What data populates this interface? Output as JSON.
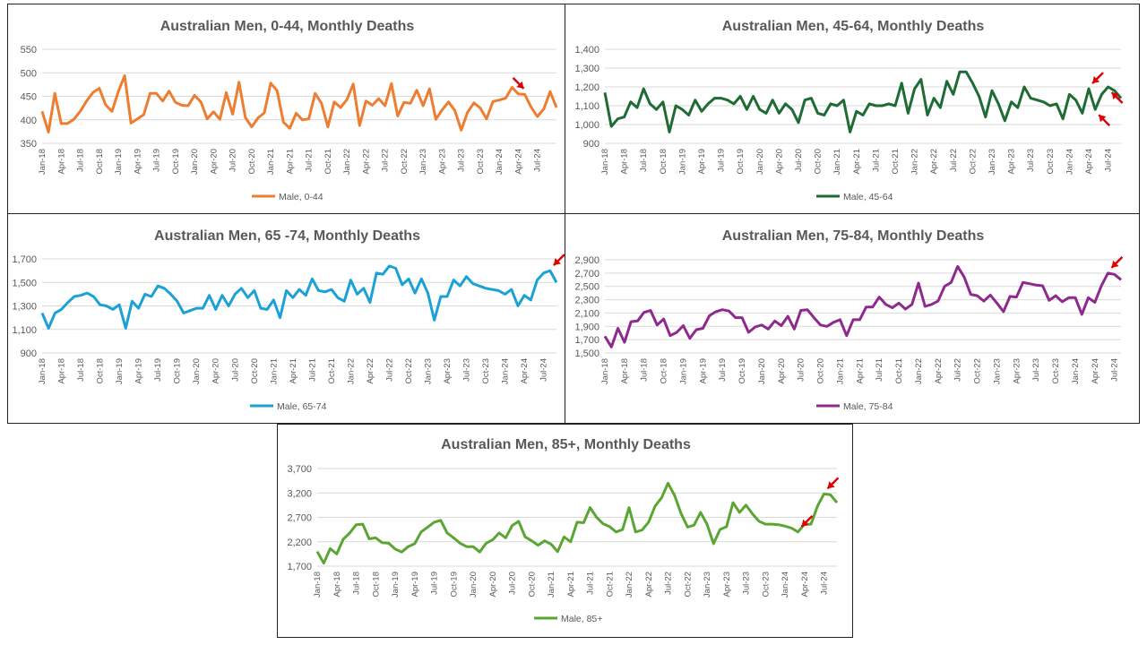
{
  "chart_data": [
    {
      "type": "line",
      "title": "Australian Men, 0-44, Monthly Deaths",
      "color": "#ed7d31",
      "ylim": [
        350,
        550
      ],
      "yticks": [
        350,
        400,
        450,
        500,
        550
      ],
      "ytick_labels": [
        "350",
        "400",
        "450",
        "500",
        "550"
      ],
      "xtick_labels": [
        "Jan-18",
        "Apr-18",
        "Jul-18",
        "Oct-18",
        "Jan-19",
        "Apr-19",
        "Jul-19",
        "Oct-19",
        "Jan-20",
        "Apr-20",
        "Jul-20",
        "Oct-20",
        "Jan-21",
        "Apr-21",
        "Jul-21",
        "Oct-21",
        "Jan-22",
        "Apr-22",
        "Jul-22",
        "Oct-22",
        "Jan-23",
        "Apr-23",
        "Jul-23",
        "Oct-23",
        "Jan-24",
        "Apr-24",
        "Jul-24"
      ],
      "legend_position": "bottom",
      "grid": true,
      "series": [
        {
          "name": "Male, 0-44",
          "values": [
            418,
            374,
            456,
            392,
            392,
            401,
            418,
            440,
            458,
            467,
            432,
            418,
            460,
            494,
            393,
            402,
            411,
            456,
            456,
            440,
            461,
            437,
            431,
            430,
            452,
            438,
            402,
            417,
            401,
            458,
            412,
            480,
            405,
            385,
            404,
            415,
            478,
            462,
            395,
            382,
            414,
            400,
            402,
            456,
            435,
            385,
            438,
            426,
            443,
            476,
            388,
            440,
            431,
            445,
            430,
            477,
            408,
            437,
            435,
            463,
            430,
            466,
            401,
            421,
            438,
            420,
            378,
            416,
            436,
            425,
            402,
            439,
            442,
            446,
            469,
            455,
            454,
            427,
            407,
            423,
            460,
            426
          ],
          "arrows": [
            {
              "index": 75,
              "dir": "down"
            }
          ]
        }
      ]
    },
    {
      "type": "line",
      "title": "Australian Men, 45-64, Monthly Deaths",
      "color": "#1e6b34",
      "ylim": [
        900,
        1400
      ],
      "yticks": [
        900,
        1000,
        1100,
        1200,
        1300,
        1400
      ],
      "ytick_labels": [
        "900",
        "1,000",
        "1,100",
        "1,200",
        "1,300",
        "1,400"
      ],
      "xtick_labels": [
        "Jan-18",
        "Apr-18",
        "Jul-18",
        "Oct-18",
        "Jan-19",
        "Apr-19",
        "Jul-19",
        "Oct-19",
        "Jan-20",
        "Apr-20",
        "Jul-20",
        "Oct-20",
        "Jan-21",
        "Apr-21",
        "Jul-21",
        "Oct-21",
        "Jan-22",
        "Apr-22",
        "Jul-22",
        "Oct-22",
        "Jan-23",
        "Apr-23",
        "Jul-23",
        "Oct-23",
        "Jan-24",
        "Apr-24",
        "Jul-24"
      ],
      "legend_position": "bottom",
      "grid": true,
      "series": [
        {
          "name": "Male, 45-64",
          "values": [
            1170,
            990,
            1030,
            1040,
            1120,
            1090,
            1190,
            1110,
            1080,
            1120,
            960,
            1100,
            1080,
            1050,
            1130,
            1070,
            1110,
            1140,
            1140,
            1130,
            1110,
            1150,
            1080,
            1150,
            1080,
            1060,
            1130,
            1060,
            1110,
            1080,
            1010,
            1130,
            1140,
            1060,
            1050,
            1110,
            1100,
            1130,
            960,
            1070,
            1050,
            1110,
            1100,
            1100,
            1110,
            1100,
            1220,
            1060,
            1190,
            1240,
            1050,
            1140,
            1090,
            1230,
            1160,
            1280,
            1280,
            1220,
            1150,
            1040,
            1180,
            1110,
            1020,
            1120,
            1090,
            1200,
            1140,
            1130,
            1120,
            1100,
            1110,
            1030,
            1160,
            1130,
            1060,
            1190,
            1080,
            1160,
            1200,
            1180,
            1140
          ],
          "arrows": [
            {
              "index": 75,
              "dir": "down-left"
            },
            {
              "index": 76,
              "dir": "up-left"
            },
            {
              "index": 78,
              "dir": "up-left"
            }
          ]
        }
      ]
    },
    {
      "type": "line",
      "title": "Australian Men, 65 -74, Monthly Deaths",
      "color": "#1ba1d6",
      "ylim": [
        900,
        1700
      ],
      "yticks": [
        900,
        1100,
        1300,
        1500,
        1700
      ],
      "ytick_labels": [
        "900",
        "1,100",
        "1,300",
        "1,500",
        "1,700"
      ],
      "xtick_labels": [
        "Jan-18",
        "Apr-18",
        "Jul-18",
        "Oct-18",
        "Jan-19",
        "Apr-19",
        "Jul-19",
        "Oct-19",
        "Jan-20",
        "Apr-20",
        "Jul-20",
        "Oct-20",
        "Jan-21",
        "Apr-21",
        "Jul-21",
        "Oct-21",
        "Jan-22",
        "Apr-22",
        "Jul-22",
        "Oct-22",
        "Jan-23",
        "Apr-23",
        "Jul-23",
        "Oct-23",
        "Jan-24",
        "Apr-24",
        "Jul-24"
      ],
      "legend_position": "bottom",
      "grid": true,
      "series": [
        {
          "name": "Male, 65-74",
          "values": [
            1240,
            1110,
            1240,
            1270,
            1330,
            1380,
            1390,
            1410,
            1380,
            1310,
            1300,
            1270,
            1310,
            1110,
            1340,
            1280,
            1400,
            1380,
            1470,
            1450,
            1400,
            1340,
            1240,
            1260,
            1280,
            1280,
            1390,
            1270,
            1390,
            1300,
            1400,
            1450,
            1370,
            1430,
            1280,
            1270,
            1350,
            1200,
            1430,
            1370,
            1440,
            1390,
            1530,
            1430,
            1420,
            1440,
            1370,
            1340,
            1520,
            1400,
            1450,
            1330,
            1580,
            1570,
            1640,
            1620,
            1480,
            1530,
            1410,
            1530,
            1410,
            1180,
            1380,
            1380,
            1520,
            1470,
            1550,
            1490,
            1470,
            1450,
            1440,
            1430,
            1400,
            1440,
            1300,
            1390,
            1350,
            1520,
            1580,
            1600,
            1500
          ],
          "arrows": [
            {
              "index": 79,
              "dir": "down-left"
            }
          ]
        }
      ]
    },
    {
      "type": "line",
      "title": "Australian Men, 75-84, Monthly Deaths",
      "color": "#8e2a8e",
      "ylim": [
        1500,
        2900
      ],
      "yticks": [
        1500,
        1700,
        1900,
        2100,
        2300,
        2500,
        2700,
        2900
      ],
      "ytick_labels": [
        "1,500",
        "1,700",
        "1,900",
        "2,100",
        "2,300",
        "2,500",
        "2,700",
        "2,900"
      ],
      "xtick_labels": [
        "Jan-18",
        "Apr-18",
        "Jul-18",
        "Oct-18",
        "Jan-19",
        "Apr-19",
        "Jul-19",
        "Oct-19",
        "Jan-20",
        "Apr-20",
        "Jul-20",
        "Oct-20",
        "Jan-21",
        "Apr-21",
        "Jul-21",
        "Oct-21",
        "Jan-22",
        "Apr-22",
        "Jul-22",
        "Oct-22",
        "Jan-23",
        "Apr-23",
        "Jul-23",
        "Oct-23",
        "Jan-24",
        "Apr-24",
        "Jul-24"
      ],
      "legend_position": "bottom",
      "grid": true,
      "series": [
        {
          "name": "Male, 75-84",
          "values": [
            1750,
            1590,
            1870,
            1660,
            1970,
            1980,
            2110,
            2140,
            1920,
            2010,
            1760,
            1810,
            1910,
            1720,
            1850,
            1870,
            2060,
            2120,
            2150,
            2130,
            2030,
            2030,
            1810,
            1890,
            1920,
            1860,
            1980,
            1910,
            2050,
            1860,
            2140,
            2150,
            2030,
            1920,
            1900,
            1960,
            2000,
            1760,
            2000,
            2000,
            2190,
            2190,
            2340,
            2230,
            2180,
            2250,
            2160,
            2230,
            2550,
            2200,
            2230,
            2280,
            2500,
            2560,
            2800,
            2640,
            2380,
            2360,
            2280,
            2370,
            2250,
            2120,
            2350,
            2340,
            2560,
            2540,
            2520,
            2510,
            2290,
            2360,
            2270,
            2330,
            2330,
            2080,
            2330,
            2260,
            2510,
            2700,
            2680,
            2600
          ],
          "arrows": [
            {
              "index": 77,
              "dir": "down-left"
            }
          ]
        }
      ]
    },
    {
      "type": "line",
      "title": "Australian Men, 85+, Monthly Deaths",
      "color": "#5ba534",
      "ylim": [
        1700,
        3700
      ],
      "yticks": [
        1700,
        2200,
        2700,
        3200,
        3700
      ],
      "ytick_labels": [
        "1,700",
        "2,200",
        "2,700",
        "3,200",
        "3,700"
      ],
      "xtick_labels": [
        "Jan-18",
        "Apr-18",
        "Jul-18",
        "Oct-18",
        "Jan-19",
        "Apr-19",
        "Jul-19",
        "Oct-19",
        "Jan-20",
        "Apr-20",
        "Jul-20",
        "Oct-20",
        "Jan-21",
        "Apr-21",
        "Jul-21",
        "Oct-21",
        "Jan-22",
        "Apr-22",
        "Jul-22",
        "Oct-22",
        "Jan-23",
        "Apr-23",
        "Jul-23",
        "Oct-23",
        "Jan-24",
        "Apr-24",
        "Jul-24"
      ],
      "legend_position": "bottom",
      "grid": true,
      "series": [
        {
          "name": "Male, 85+",
          "values": [
            2000,
            1760,
            2060,
            1950,
            2250,
            2380,
            2550,
            2560,
            2260,
            2280,
            2180,
            2170,
            2050,
            1990,
            2100,
            2160,
            2400,
            2500,
            2600,
            2640,
            2380,
            2280,
            2170,
            2100,
            2100,
            1990,
            2170,
            2240,
            2380,
            2280,
            2530,
            2620,
            2300,
            2220,
            2130,
            2220,
            2150,
            2000,
            2300,
            2200,
            2600,
            2590,
            2900,
            2700,
            2570,
            2510,
            2400,
            2450,
            2900,
            2400,
            2440,
            2600,
            2930,
            3100,
            3400,
            3150,
            2780,
            2500,
            2540,
            2800,
            2560,
            2160,
            2450,
            2510,
            3000,
            2800,
            2950,
            2770,
            2620,
            2560,
            2560,
            2550,
            2520,
            2480,
            2400,
            2560,
            2560,
            2930,
            3180,
            3160,
            3000
          ],
          "arrows": [
            {
              "index": 74,
              "dir": "down-left"
            },
            {
              "index": 78,
              "dir": "down-left"
            }
          ]
        }
      ]
    }
  ]
}
